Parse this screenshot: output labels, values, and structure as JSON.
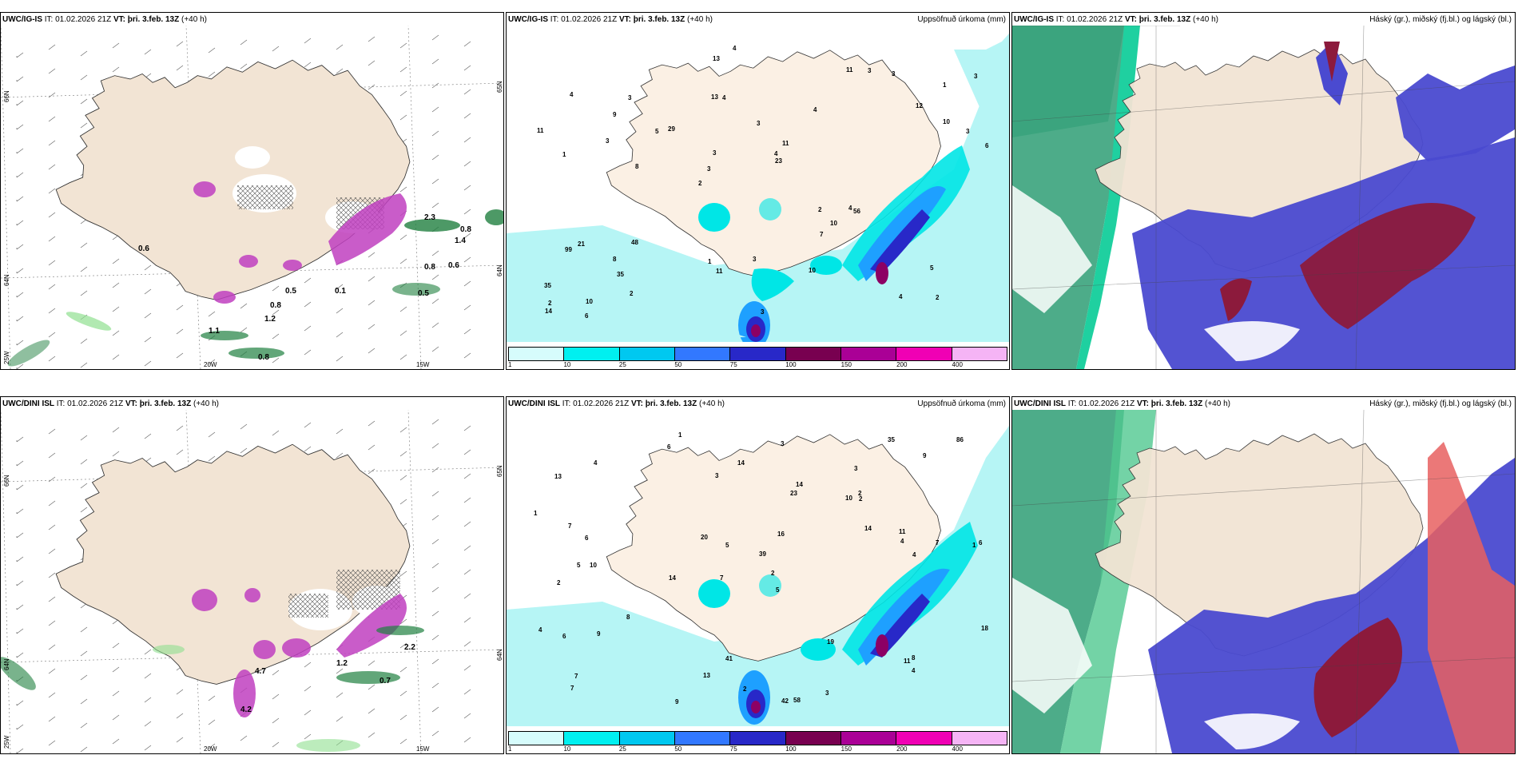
{
  "panels": [
    {
      "id": "top-left",
      "model": "UWC/IG-IS",
      "it_label": "IT:",
      "it_value": "01.02.2026 21Z",
      "vt_label": "VT:",
      "vt_value": "þri. 3.feb. 13Z",
      "lead": "(+40 h)",
      "right_title": "",
      "lat_labels": [
        "66N",
        "64N"
      ],
      "lon_labels": [
        "25W",
        "20W",
        "15W"
      ],
      "right_lat_labels": [
        "65N",
        "64N"
      ],
      "values": [
        "0.6",
        "0.8",
        "1.4",
        "0.8",
        "0.6",
        "0.5",
        "0.5",
        "0.8",
        "1.2",
        "0.8",
        "1.1",
        "2.3",
        "0.1"
      ]
    },
    {
      "id": "top-mid",
      "model": "UWC/IG-IS",
      "it_label": "IT:",
      "it_value": "01.02.2026 21Z",
      "vt_label": "VT:",
      "vt_value": "þri. 3.feb. 13Z",
      "lead": "(+40 h)",
      "right_title": "Uppsöfnuð úrkoma (mm)",
      "values": [
        "2",
        "1",
        "1",
        "2",
        "4",
        "10",
        "13",
        "3",
        "21",
        "29",
        "35",
        "35",
        "4",
        "11",
        "56",
        "4",
        "13",
        "6",
        "2",
        "10",
        "3",
        "1",
        "3",
        "3",
        "11",
        "48",
        "4",
        "5",
        "4",
        "3",
        "5",
        "3",
        "7",
        "2",
        "3",
        "4",
        "2",
        "11",
        "23",
        "99",
        "12",
        "3",
        "10",
        "10",
        "8",
        "6",
        "14",
        "3",
        "3",
        "4",
        "8",
        "11",
        "9",
        "3"
      ],
      "colorbar": {
        "ticks": [
          "1",
          "10",
          "25",
          "50",
          "75",
          "100",
          "150",
          "200",
          "400"
        ],
        "colors": [
          "#d6fcfc",
          "#00f0f0",
          "#00c8f0",
          "#3278ff",
          "#2828c8",
          "#780050",
          "#aa0096",
          "#f000b4",
          "#f5b4f5"
        ]
      }
    },
    {
      "id": "top-right",
      "model": "UWC/IG-IS",
      "it_label": "IT:",
      "it_value": "01.02.2026 21Z",
      "vt_label": "VT:",
      "vt_value": "þri. 3.feb. 13Z",
      "lead": "(+40 h)",
      "right_title": "Háský (gr.), miðský (fj.bl.) og lágský (bl.)"
    },
    {
      "id": "bottom-left",
      "model": "UWC/DINI ISL",
      "it_label": "IT:",
      "it_value": "01.02.2026 21Z",
      "vt_label": "VT:",
      "vt_value": "þri. 3.feb. 13Z",
      "lead": "(+40 h)",
      "right_title": "",
      "lat_labels": [
        "66N",
        "64N"
      ],
      "lon_labels": [
        "25W",
        "20W",
        "15W"
      ],
      "right_lat_labels": [
        "65N",
        "64N"
      ],
      "values": [
        "0.7",
        "1.2",
        "4.7",
        "2.2",
        "4.2"
      ]
    },
    {
      "id": "bottom-mid",
      "model": "UWC/DINI ISL",
      "it_label": "IT:",
      "it_value": "01.02.2026 21Z",
      "vt_label": "VT:",
      "vt_value": "þri. 3.feb. 13Z",
      "lead": "(+40 h)",
      "right_title": "Uppsöfnuð úrkoma (mm)",
      "values": [
        "1",
        "3",
        "1",
        "7",
        "5",
        "10",
        "13",
        "10",
        "2",
        "23",
        "39",
        "7",
        "6",
        "14",
        "42",
        "58",
        "41",
        "35",
        "14",
        "8",
        "6",
        "5",
        "6",
        "7",
        "4",
        "7",
        "5",
        "4",
        "8",
        "6",
        "11",
        "14",
        "9",
        "20",
        "19",
        "18",
        "11",
        "13",
        "86",
        "14",
        "7",
        "9",
        "3",
        "4",
        "2",
        "2",
        "4",
        "2",
        "1",
        "2",
        "3",
        "4",
        "16",
        "9",
        "3"
      ],
      "colorbar": {
        "ticks": [
          "1",
          "10",
          "25",
          "50",
          "75",
          "100",
          "150",
          "200",
          "400"
        ],
        "colors": [
          "#d6fcfc",
          "#00f0f0",
          "#00c8f0",
          "#3278ff",
          "#2828c8",
          "#780050",
          "#aa0096",
          "#f000b4",
          "#f5b4f5"
        ]
      }
    },
    {
      "id": "bottom-right",
      "model": "UWC/DINI ISL",
      "it_label": "IT:",
      "it_value": "01.02.2026 21Z",
      "vt_label": "VT:",
      "vt_value": "þri. 3.feb. 13Z",
      "lead": "(+40 h)",
      "right_title": "Háský (gr.), miðský (fj.bl.) og lágský (bl.)"
    }
  ],
  "colors": {
    "land": "#f2e4d4",
    "sea_precip": "#b6f5f5",
    "precip_light": "#00e6e6",
    "precip_mid": "#1ea0ff",
    "precip_heavy": "#2828c8",
    "precip_extreme": "#8c0064",
    "cloud_high": "#2e9e74",
    "cloud_mid": "#4a4ad0",
    "cloud_low_red": "#8c1a3c",
    "magenta": "#c040c0",
    "green": "#208040"
  }
}
